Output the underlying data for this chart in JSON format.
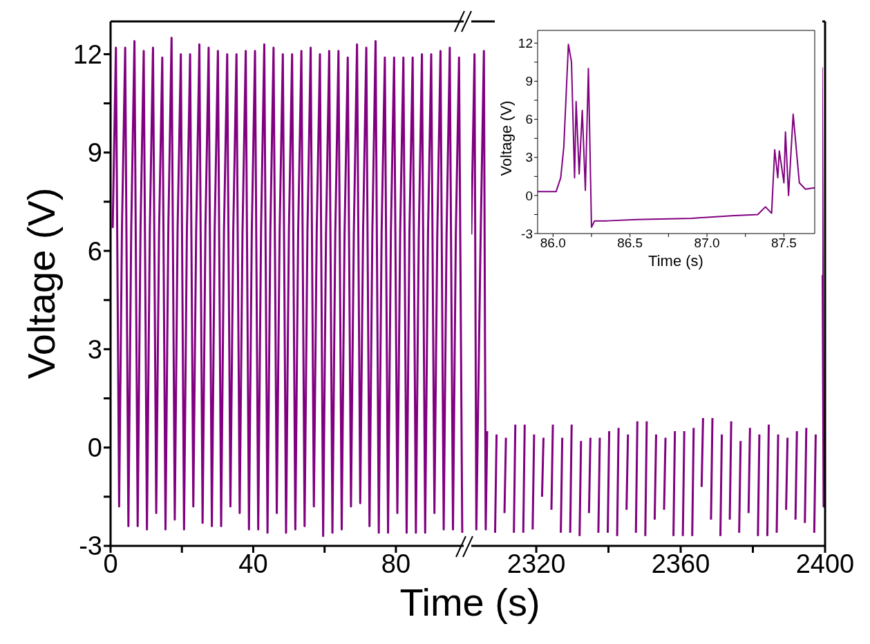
{
  "chart_data": [
    {
      "type": "line",
      "xlabel": "Time (s)",
      "ylabel": "Voltage (V)",
      "xlim": [
        0,
        99
      ],
      "ylim": [
        -3,
        13
      ],
      "xticks": [
        0,
        {
          "value": 20,
          "label": null
        },
        40,
        {
          "value": 60,
          "label": null
        },
        80
      ],
      "yticks": [
        -3,
        {
          "value": -1.5,
          "label": null
        },
        0,
        {
          "value": 1.5,
          "label": null
        },
        3,
        {
          "value": 4.5,
          "label": null
        },
        6,
        {
          "value": 7.5,
          "label": null
        },
        9,
        {
          "value": 10.5,
          "label": null
        },
        12
      ],
      "series": [
        {
          "color": "#800080",
          "x": [
            0.6,
            1.5,
            2.4,
            3.2,
            4.1,
            5.0,
            5.8,
            6.7,
            7.6,
            8.4,
            9.3,
            10.2,
            11.0,
            11.9,
            12.8,
            13.6,
            14.5,
            15.4,
            16.2,
            17.1,
            18.0,
            18.8,
            19.7,
            20.6,
            21.4,
            22.3,
            23.2,
            24.0,
            24.9,
            25.8,
            26.6,
            27.5,
            28.4,
            29.2,
            30.1,
            31.0,
            31.8,
            32.7,
            33.6,
            34.4,
            35.3,
            36.2,
            37.0,
            37.9,
            38.8,
            39.6,
            40.5,
            41.4,
            42.2,
            43.1,
            44.0,
            44.8,
            45.7,
            46.6,
            47.4,
            48.3,
            49.2,
            50.0,
            50.9,
            51.8,
            52.6,
            53.5,
            54.4,
            55.2,
            56.1,
            57.0,
            57.8,
            58.7,
            59.6,
            60.4,
            61.3,
            62.2,
            63.0,
            63.9,
            64.8,
            65.6,
            66.5,
            67.4,
            68.2,
            69.1,
            70.0,
            70.8,
            71.7,
            72.6,
            73.4,
            74.3,
            75.2,
            76.0,
            76.9,
            77.8,
            78.6,
            79.5,
            80.4,
            81.2,
            82.1,
            83.0,
            83.8,
            84.7,
            85.6,
            86.4,
            87.3,
            88.2,
            89.0,
            89.9,
            90.8,
            91.6,
            92.5,
            93.4,
            94.2,
            95.1,
            96.0,
            96.8,
            97.7,
            98.6
          ],
          "values": [
            6.7,
            12.2,
            -1.8,
            6.7,
            12.2,
            -2.4,
            6.7,
            12.4,
            -2.4,
            6.7,
            12.1,
            -2.5,
            6.6,
            12.2,
            -2.0,
            6.6,
            11.9,
            -2.5,
            6.7,
            12.5,
            -2.2,
            6.7,
            12.0,
            -2.5,
            6.6,
            12.0,
            -1.8,
            6.6,
            12.3,
            -2.3,
            6.7,
            12.2,
            -2.4,
            6.7,
            12.1,
            -2.4,
            6.6,
            12.0,
            -1.8,
            6.6,
            12.0,
            -2.0,
            6.6,
            12.1,
            -2.5,
            6.6,
            12.1,
            -2.5,
            6.7,
            12.3,
            -2.6,
            6.6,
            12.2,
            -2.0,
            6.6,
            12.0,
            -2.6,
            6.6,
            12.0,
            -2.5,
            6.6,
            12.1,
            -2.4,
            6.6,
            12.2,
            -1.8,
            6.6,
            12.0,
            -2.7,
            6.5,
            12.1,
            -2.6,
            6.5,
            12.1,
            -2.5,
            6.5,
            11.9,
            -1.8,
            6.5,
            12.3,
            -1.7,
            6.6,
            12.2,
            -2.4,
            6.6,
            12.4,
            -2.6,
            6.6,
            11.9,
            -2.6,
            6.6,
            11.9,
            -2.0,
            6.6,
            11.9,
            -2.6,
            6.6,
            11.9,
            -2.6,
            6.4,
            12.0,
            -2.6,
            6.5,
            12.0,
            -2.0,
            6.5,
            12.1,
            -2.5,
            6.5,
            12.2,
            -2.5,
            6.5,
            11.9,
            -2.6
          ]
        }
      ]
    },
    {
      "type": "line",
      "tick_labels": "x",
      "xlim": [
        2302,
        2400
      ],
      "ylim": [
        -3,
        13
      ],
      "xticks": [
        2320,
        {
          "value": 2340,
          "label": null
        },
        2360,
        {
          "value": 2380,
          "label": null
        },
        2400
      ],
      "series": [
        {
          "color": "#800080",
          "x": [
            2302.0,
            2302.9,
            2303.4,
            2303.8,
            2304.6,
            2305.5,
            2306.0,
            2306.4,
            2307.2,
            2308.1,
            2308.6,
            2309.0,
            2309.8,
            2310.7,
            2311.2,
            2311.6,
            2312.4,
            2313.3,
            2313.8,
            2314.2,
            2315.0,
            2315.9,
            2316.4,
            2316.8,
            2317.6,
            2318.5,
            2319.0,
            2319.4,
            2320.2,
            2321.1,
            2321.6,
            2322.0,
            2322.8,
            2323.7,
            2324.2,
            2324.6,
            2325.4,
            2326.3,
            2326.8,
            2327.2,
            2328.0,
            2328.9,
            2329.4,
            2329.8,
            2330.6,
            2331.5,
            2332.0,
            2332.4,
            2333.2,
            2334.1,
            2334.6,
            2335.0,
            2335.8,
            2336.7,
            2337.2,
            2337.6,
            2338.4,
            2339.3,
            2339.8,
            2340.2,
            2341.0,
            2341.9,
            2342.4,
            2342.8,
            2343.6,
            2344.5,
            2345.0,
            2345.4,
            2346.2,
            2347.1,
            2347.6,
            2348.0,
            2348.8,
            2349.7,
            2350.2,
            2350.6,
            2351.4,
            2352.3,
            2352.8,
            2353.2,
            2354.0,
            2354.9,
            2355.4,
            2355.8,
            2356.6,
            2357.5,
            2358.0,
            2358.4,
            2359.2,
            2360.1,
            2360.6,
            2361.0,
            2361.8,
            2362.7,
            2363.2,
            2363.6,
            2364.4,
            2365.3,
            2365.8,
            2366.2,
            2367.0,
            2367.9,
            2368.4,
            2368.8,
            2369.6,
            2370.5,
            2371.0,
            2371.4,
            2372.2,
            2373.1,
            2373.6,
            2374.0,
            2374.8,
            2375.7,
            2376.2,
            2376.6,
            2377.4,
            2378.3,
            2378.8,
            2379.2,
            2380.0,
            2380.9,
            2381.4,
            2381.8,
            2382.6,
            2383.5,
            2384.0,
            2384.4,
            2385.2,
            2386.1,
            2386.6,
            2387.0,
            2387.8,
            2388.7,
            2389.2,
            2389.6,
            2390.4,
            2391.3,
            2391.8,
            2392.2,
            2393.0,
            2393.9,
            2394.4,
            2394.8,
            2395.6,
            2396.5,
            2397.0,
            2397.4,
            2398.2,
            2399.1,
            2399.6,
            2400.0
          ],
          "values": [
            6.5,
            12.0,
            -2.5,
            0.6,
            6.5,
            12.1,
            -2.5,
            0.5,
            null,
            null,
            -2.6,
            0.4,
            null,
            null,
            -2.0,
            0.3,
            null,
            null,
            -2.6,
            0.7,
            null,
            null,
            -2.6,
            0.7,
            null,
            null,
            -2.5,
            0.4,
            null,
            null,
            -1.5,
            0.3,
            null,
            null,
            -1.9,
            0.7,
            null,
            null,
            -2.6,
            0.3,
            null,
            null,
            -2.6,
            0.7,
            null,
            null,
            -2.7,
            0.2,
            null,
            null,
            -2.0,
            0.3,
            null,
            null,
            -2.6,
            0.3,
            null,
            null,
            -2.6,
            0.5,
            null,
            null,
            -2.7,
            0.6,
            null,
            null,
            -1.9,
            0.4,
            null,
            null,
            -2.6,
            0.8,
            null,
            null,
            -2.7,
            0.8,
            null,
            null,
            -2.2,
            0.4,
            null,
            null,
            -1.9,
            0.3,
            null,
            null,
            -2.7,
            0.5,
            null,
            null,
            -2.7,
            0.5,
            null,
            null,
            -2.7,
            0.6,
            null,
            null,
            -1.2,
            0.9,
            null,
            null,
            -2.2,
            0.9,
            null,
            null,
            -2.7,
            0.4,
            null,
            null,
            -2.2,
            0.8,
            null,
            null,
            -2.6,
            0.2,
            null,
            null,
            -2.0,
            0.6,
            null,
            null,
            -2.7,
            0.4,
            null,
            null,
            -2.7,
            0.7,
            null,
            null,
            -2.6,
            0.4,
            null,
            null,
            -1.9,
            0.3,
            null,
            null,
            -2.2,
            0.5,
            null,
            null,
            -2.3,
            0.6,
            null,
            null,
            -2.6,
            0.4,
            null,
            11.6,
            -1.8,
            0.4
          ]
        }
      ]
    },
    {
      "type": "line",
      "xlabel": "Time (s)",
      "ylabel": "Voltage (V)",
      "xlim": [
        85.9,
        87.7
      ],
      "ylim": [
        -3,
        13
      ],
      "xticks": [
        {
          "value": 86,
          "label": "86.0"
        },
        {
          "value": 86.25,
          "label": null
        },
        {
          "value": 86.5,
          "label": "86.5"
        },
        {
          "value": 86.75,
          "label": null
        },
        {
          "value": 87,
          "label": "87.0"
        },
        {
          "value": 87.25,
          "label": null
        },
        {
          "value": 87.5,
          "label": "87.5"
        }
      ],
      "yticks": [
        -3,
        {
          "value": -1.5,
          "label": null
        },
        0,
        {
          "value": 1.5,
          "label": null
        },
        3,
        {
          "value": 4.5,
          "label": null
        },
        6,
        {
          "value": 7.5,
          "label": null
        },
        9,
        {
          "value": 10.5,
          "label": null
        },
        12
      ],
      "series": [
        {
          "color": "#800080",
          "x": [
            85.9,
            86.02,
            86.05,
            86.07,
            86.1,
            86.12,
            86.14,
            86.15,
            86.17,
            86.19,
            86.21,
            86.23,
            86.25,
            86.27,
            86.35,
            86.54,
            86.9,
            87.16,
            87.33,
            87.38,
            87.42,
            87.44,
            87.46,
            87.47,
            87.5,
            87.51,
            87.53,
            87.56,
            87.6,
            87.64,
            87.7
          ],
          "values": [
            0.3,
            0.3,
            1.4,
            3.8,
            11.9,
            10.5,
            1.4,
            7.4,
            1.7,
            6.7,
            0.4,
            10.0,
            -2.5,
            -2.0,
            -2.0,
            -1.9,
            -1.8,
            -1.6,
            -1.5,
            -0.9,
            -1.4,
            3.6,
            1.4,
            3.5,
            1.0,
            5.0,
            0.0,
            6.4,
            1.0,
            0.5,
            0.6
          ]
        }
      ]
    }
  ]
}
